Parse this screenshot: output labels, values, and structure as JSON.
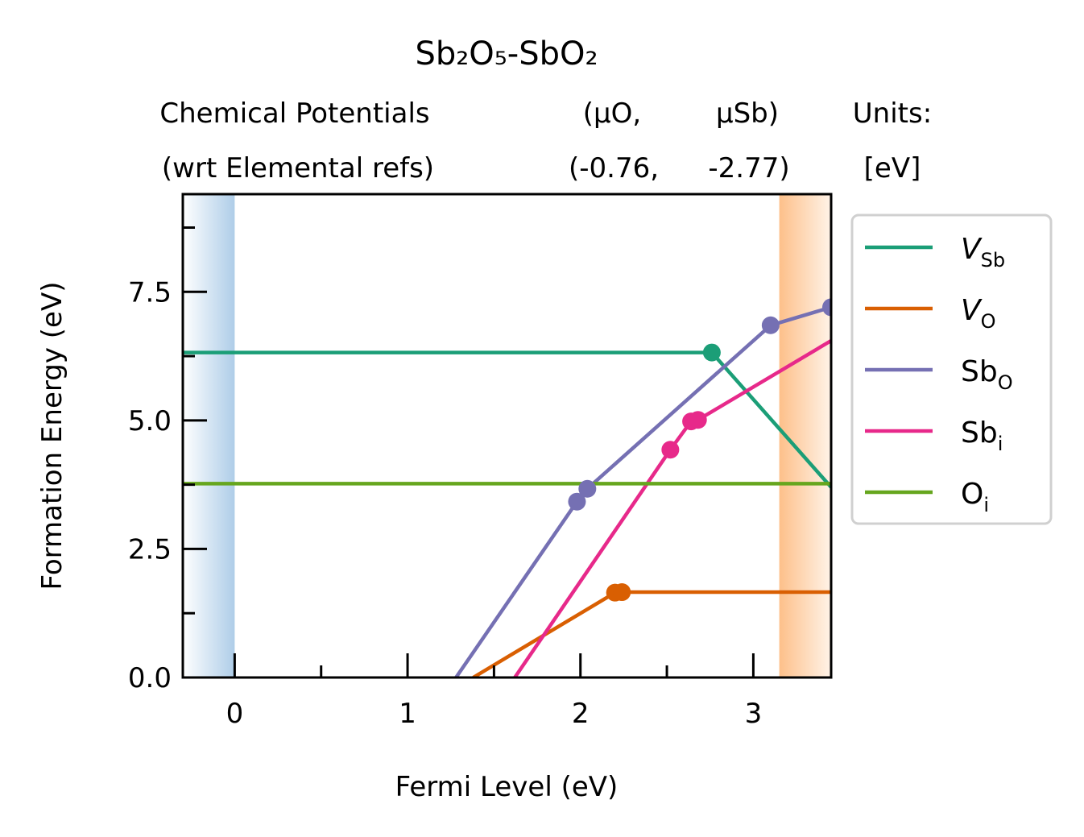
{
  "chart_data": {
    "type": "line",
    "title": "Sb₂O₅-SbO₂",
    "chem_potentials": {
      "header_left": [
        "Chemical Potentials",
        "(wrt Elemental refs)"
      ],
      "col1": [
        "(μO,",
        "(-0.76,"
      ],
      "col2": [
        "μSb)",
        "-2.77)"
      ],
      "units": [
        "Units:",
        "[eV]"
      ]
    },
    "xlabel": "Fermi Level (eV)",
    "ylabel": "Formation Energy (eV)",
    "xlim": [
      -0.3,
      3.45
    ],
    "ylim": [
      0,
      9.4
    ],
    "x_ticks": [
      0,
      1,
      2,
      3
    ],
    "x_tick_labels": [
      "0",
      "1",
      "2",
      "3"
    ],
    "y_ticks": [
      0,
      2.5,
      5.0,
      7.5
    ],
    "y_tick_labels": [
      "0.0",
      "2.5",
      "5.0",
      "7.5"
    ],
    "vbm": 0,
    "cbm": 3.15,
    "series": [
      {
        "name": "VSb",
        "label_main": "V",
        "label_sub": "Sb",
        "italic": true,
        "color": "#1b9e77",
        "points": [
          [
            -0.3,
            6.32
          ],
          [
            2.76,
            6.32
          ],
          [
            3.45,
            3.7
          ]
        ],
        "transitions": [
          [
            2.76,
            6.32
          ]
        ]
      },
      {
        "name": "VO",
        "label_main": "V",
        "label_sub": "O",
        "italic": true,
        "color": "#d95f02",
        "points": [
          [
            1.38,
            0.0
          ],
          [
            2.2,
            1.65
          ],
          [
            2.24,
            1.66
          ],
          [
            3.45,
            1.66
          ]
        ],
        "transitions": [
          [
            2.2,
            1.65
          ],
          [
            2.24,
            1.66
          ]
        ]
      },
      {
        "name": "SbO",
        "label_main": "Sb",
        "label_sub": "O",
        "italic": false,
        "color": "#7570b3",
        "points": [
          [
            1.28,
            0.0
          ],
          [
            1.98,
            3.42
          ],
          [
            2.04,
            3.67
          ],
          [
            3.1,
            6.85
          ],
          [
            3.45,
            7.2
          ]
        ],
        "transitions": [
          [
            1.98,
            3.42
          ],
          [
            2.04,
            3.67
          ],
          [
            3.1,
            6.85
          ],
          [
            3.45,
            7.2
          ]
        ]
      },
      {
        "name": "Sbi",
        "label_main": "Sb",
        "label_sub": "i",
        "italic": false,
        "color": "#e7298a",
        "points": [
          [
            1.62,
            0.0
          ],
          [
            2.52,
            4.43
          ],
          [
            2.64,
            4.98
          ],
          [
            2.68,
            5.01
          ],
          [
            3.45,
            6.55
          ]
        ],
        "transitions": [
          [
            2.52,
            4.43
          ],
          [
            2.64,
            4.98
          ],
          [
            2.68,
            5.01
          ]
        ]
      },
      {
        "name": "Oi",
        "label_main": "O",
        "label_sub": "i",
        "italic": false,
        "color": "#66a61e",
        "points": [
          [
            -0.3,
            3.77
          ],
          [
            3.45,
            3.77
          ]
        ],
        "transitions": []
      }
    ],
    "legend_position": "right"
  }
}
